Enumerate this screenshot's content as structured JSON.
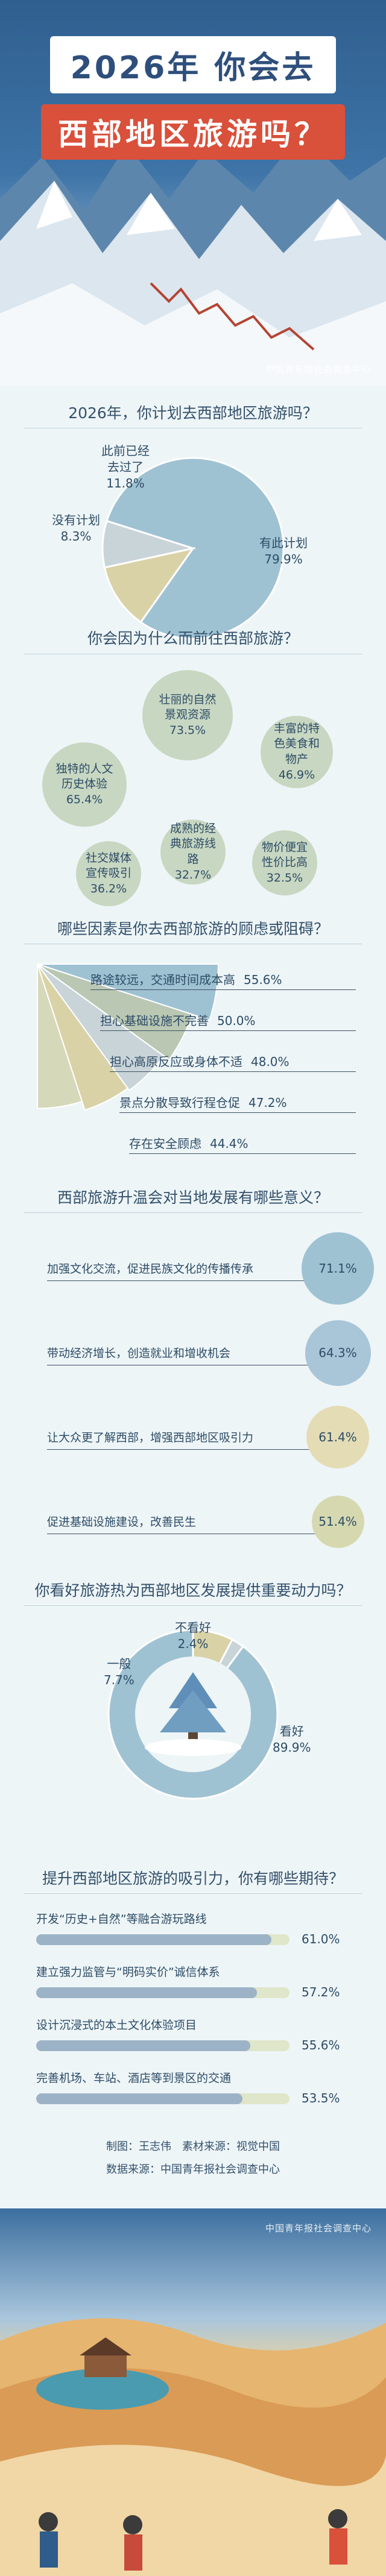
{
  "header": {
    "title_line1": "2026年 你会去",
    "title_line2": "西部地区旅游吗？",
    "watermark": "中国青年报社会调查中心"
  },
  "colors": {
    "blue_light": "#9fc2d3",
    "gray_light": "#c9d4d9",
    "beige": "#d9d2a7",
    "blue_dark": "#6f9ec0",
    "sage": "#b9c7b3",
    "bubble_green": "#c8d7c2",
    "accent_red": "#d9503b"
  },
  "chart_data": [
    {
      "type": "pie",
      "title": "2026年，你计划去西部地区旅游吗？",
      "categories": [
        "有此计划",
        "此前已经去过了",
        "没有计划"
      ],
      "values": [
        79.9,
        11.8,
        8.3
      ],
      "value_labels": [
        "79.9%",
        "11.8%",
        "8.3%"
      ]
    },
    {
      "type": "bubble",
      "title": "你会因为什么而前往西部旅游？",
      "categories": [
        "壮丽的自然景观资源",
        "独特的人文历史体验",
        "丰富的特色美食和物产",
        "社交媒体宣传吸引",
        "成熟的经典旅游线路",
        "物价便宜性价比高"
      ],
      "values": [
        73.5,
        65.4,
        46.9,
        36.2,
        32.7,
        32.5
      ],
      "value_labels": [
        "73.5%",
        "65.4%",
        "46.9%",
        "36.2%",
        "32.7%",
        "32.5%"
      ]
    },
    {
      "type": "bar",
      "title": "哪些因素是你去西部旅游的顾虑或阻碍？",
      "categories": [
        "路途较远，交通时间成本高",
        "担心基础设施不完善",
        "担心高原反应或身体不适",
        "景点分散导致行程仓促",
        "存在安全顾虑"
      ],
      "values": [
        55.6,
        50.0,
        48.0,
        47.2,
        44.4
      ],
      "value_labels": [
        "55.6%",
        "50.0%",
        "48.0%",
        "47.2%",
        "44.4%"
      ]
    },
    {
      "type": "bubble",
      "title": "西部旅游升温会对当地发展有哪些意义？",
      "categories": [
        "加强文化交流，促进民族文化的传播传承",
        "带动经济增长，创造就业和增收机会",
        "让大众更了解西部，增强西部地区吸引力",
        "促进基础设施建设，改善民生"
      ],
      "values": [
        71.1,
        64.3,
        61.4,
        51.4
      ],
      "value_labels": [
        "71.1%",
        "64.3%",
        "61.4%",
        "51.4%"
      ]
    },
    {
      "type": "pie",
      "title": "你看好旅游热为西部地区发展提供重要动力吗？",
      "categories": [
        "看好",
        "一般",
        "不看好"
      ],
      "values": [
        89.9,
        7.7,
        2.4
      ],
      "value_labels": [
        "89.9%",
        "7.7%",
        "2.4%"
      ]
    },
    {
      "type": "bar",
      "title": "提升西部地区旅游的吸引力，你有哪些期待？",
      "categories": [
        "开发“历史+自然”等融合游玩路线",
        "建立强力监管与“明码实价”诚信体系",
        "设计沉浸式的本土文化体验项目",
        "完善机场、车站、酒店等到景区的交通"
      ],
      "values": [
        61.0,
        57.2,
        55.6,
        53.5
      ],
      "value_labels": [
        "61.0%",
        "57.2%",
        "55.6%",
        "53.5%"
      ]
    }
  ],
  "credits": {
    "line1": "制图：王志伟　素材来源：视觉中国",
    "line2": "数据来源：中国青年报社会调查中心"
  }
}
